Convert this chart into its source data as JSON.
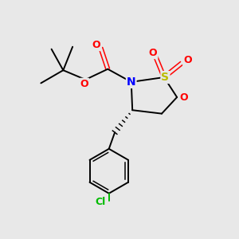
{
  "background_color": "#e8e8e8",
  "atom_colors": {
    "C": "#000000",
    "N": "#0000ff",
    "O": "#ff0000",
    "S": "#bbbb00",
    "Cl": "#00bb00"
  },
  "figsize": [
    3.0,
    3.0
  ],
  "dpi": 100,
  "lw": 1.4,
  "lw_inner": 1.1
}
